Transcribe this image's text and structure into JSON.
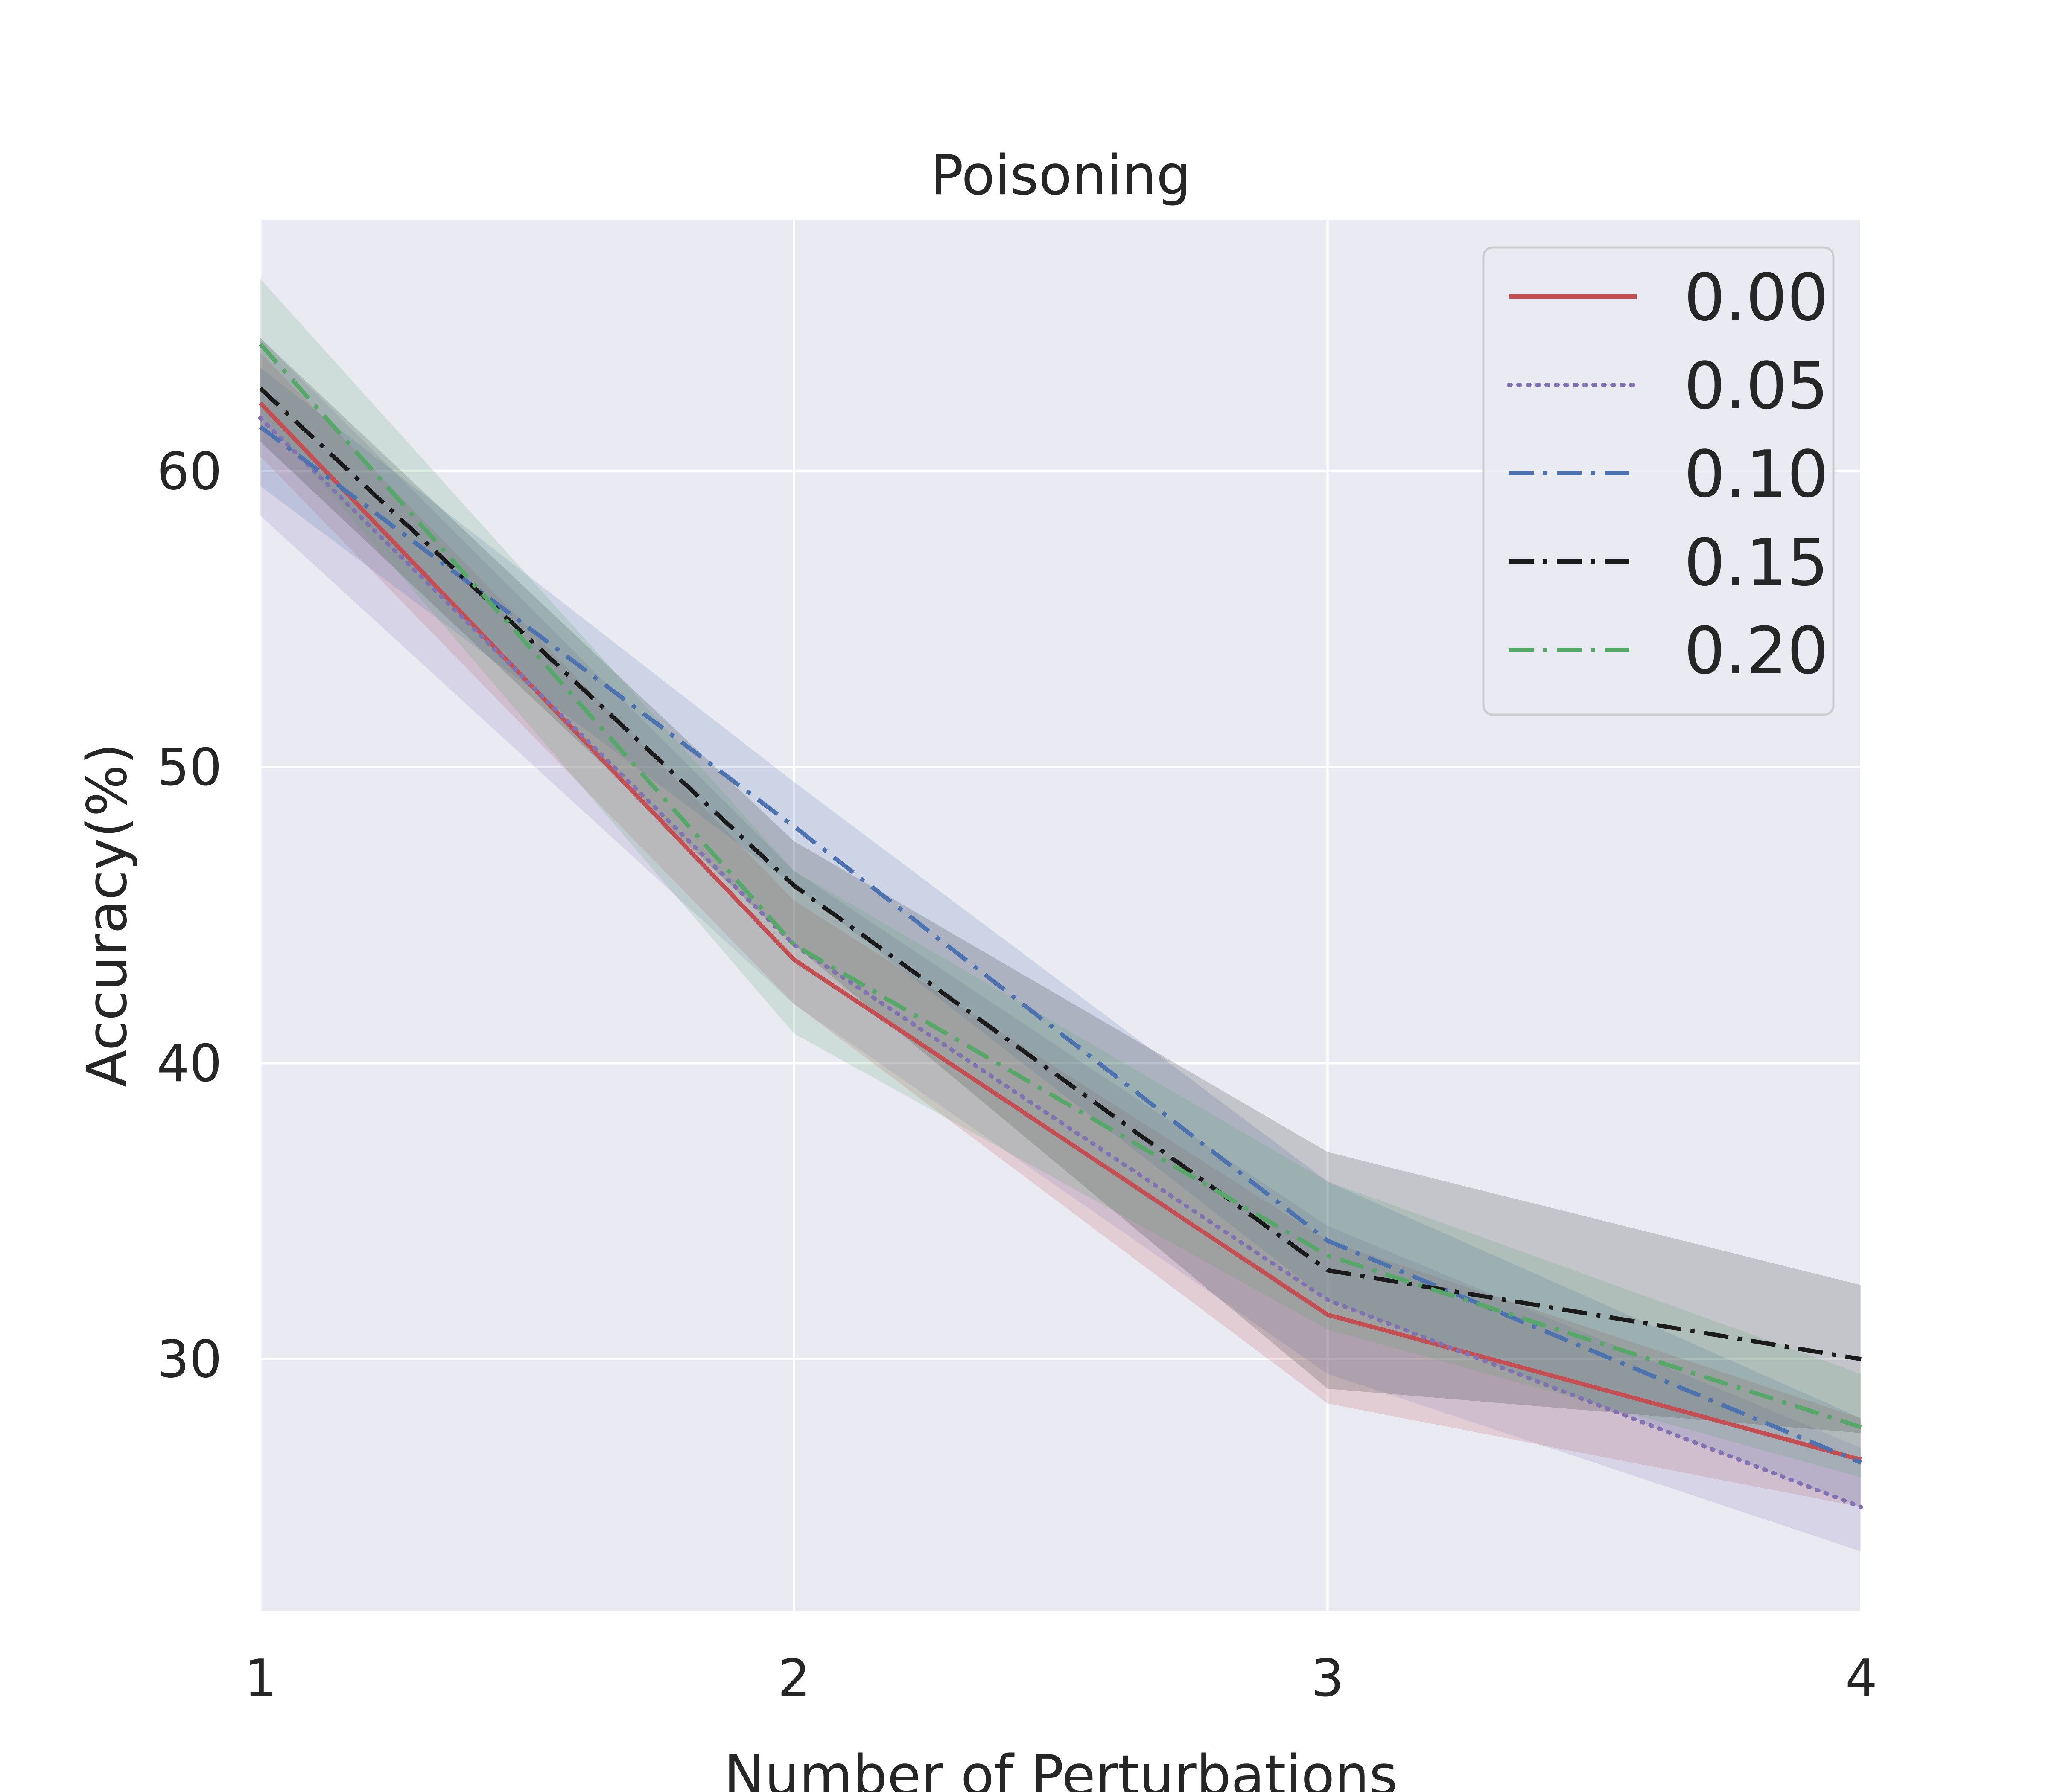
{
  "chart_data": {
    "type": "line",
    "title": "Poisoning",
    "xlabel": "Number of Perturbations",
    "ylabel": "Accuracy(%)",
    "x": [
      1,
      2,
      3,
      4
    ],
    "xticks": [
      "1",
      "2",
      "3",
      "4"
    ],
    "yticks": [
      "30",
      "40",
      "50",
      "60"
    ],
    "ytick_values": [
      30,
      40,
      50,
      60
    ],
    "xlim": [
      1,
      4
    ],
    "ylim": [
      21.5,
      68.5
    ],
    "grid": true,
    "legend_position": "top-right",
    "series": [
      {
        "name": "0.00",
        "color": "#c44e52",
        "dash": "solid",
        "values": [
          62.3,
          43.5,
          31.5,
          26.6
        ],
        "lower": [
          60.5,
          42.0,
          28.5,
          25.0
        ],
        "upper": [
          64.0,
          45.5,
          34.0,
          28.0
        ]
      },
      {
        "name": "0.05",
        "color": "#8172b2",
        "dash": "dotted",
        "values": [
          61.8,
          44.0,
          32.0,
          25.0
        ],
        "lower": [
          58.5,
          42.0,
          29.5,
          23.5
        ],
        "upper": [
          64.5,
          46.5,
          34.5,
          27.0
        ]
      },
      {
        "name": "0.10",
        "color": "#4c72b0",
        "dash": "dashdot",
        "values": [
          61.5,
          48.0,
          34.0,
          26.5
        ],
        "lower": [
          59.5,
          46.0,
          32.0,
          25.0
        ],
        "upper": [
          63.5,
          49.5,
          36.0,
          28.0
        ]
      },
      {
        "name": "0.15",
        "color": "#1a1a1a",
        "dash": "dashdot",
        "values": [
          62.8,
          46.0,
          33.0,
          30.0
        ],
        "lower": [
          61.0,
          44.0,
          29.0,
          27.5
        ],
        "upper": [
          64.5,
          47.5,
          37.0,
          32.5
        ]
      },
      {
        "name": "0.20",
        "color": "#55a868",
        "dash": "dashdot",
        "values": [
          64.3,
          44.0,
          33.5,
          27.7
        ],
        "lower": [
          62.0,
          41.0,
          31.0,
          26.0
        ],
        "upper": [
          66.5,
          46.5,
          36.0,
          29.5
        ]
      }
    ]
  }
}
